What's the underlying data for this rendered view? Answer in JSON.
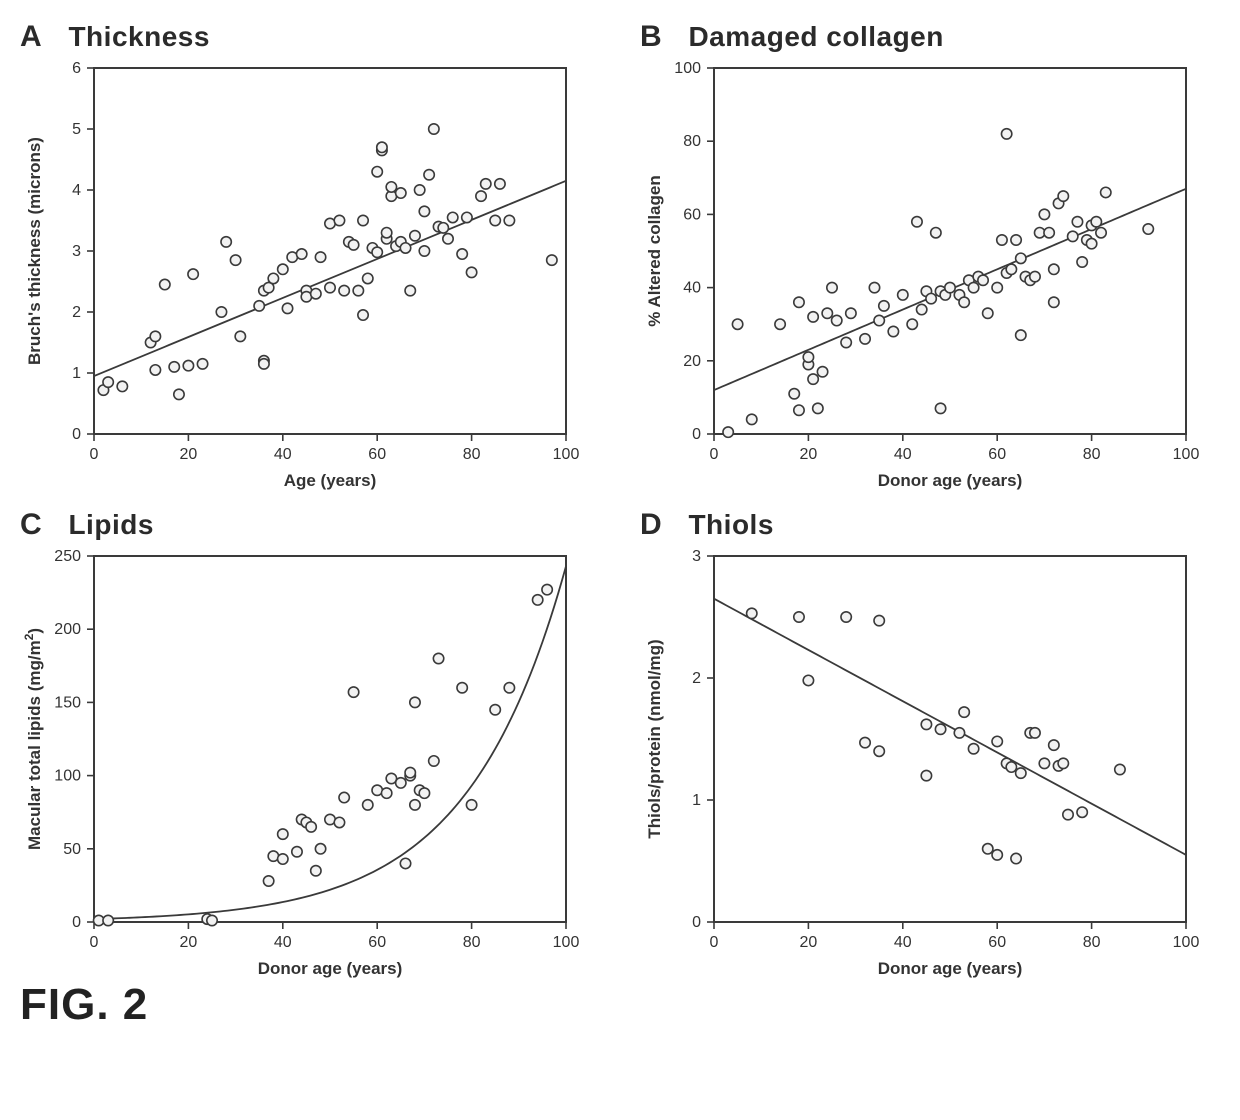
{
  "figure_label": "FIG. 2",
  "global": {
    "background_color": "#ffffff",
    "axis_color": "#3a3a3a",
    "tick_color": "#3a3a3a",
    "text_color": "#333333",
    "marker_stroke": "#3a3a3a",
    "marker_fill": "#f2f2f2",
    "line_color": "#3a3a3a",
    "marker_radius": 5.2,
    "marker_stroke_width": 1.6,
    "line_width": 1.8,
    "axis_width": 2,
    "tick_length": 7,
    "title_fontsize": 28,
    "label_fontsize": 17,
    "tick_fontsize": 16
  },
  "panels": {
    "A": {
      "letter": "A",
      "title": "Thickness",
      "type": "scatter",
      "xlabel": "Age (years)",
      "ylabel": "Bruch's thickness (microns)",
      "xlim": [
        0,
        100
      ],
      "ylim": [
        0,
        6
      ],
      "xticks": [
        0,
        20,
        40,
        60,
        80,
        100
      ],
      "yticks": [
        0,
        1,
        2,
        3,
        4,
        5,
        6
      ],
      "fit": {
        "kind": "linear",
        "m": 0.032,
        "b": 0.95
      },
      "points": [
        [
          2,
          0.72
        ],
        [
          3,
          0.85
        ],
        [
          6,
          0.78
        ],
        [
          12,
          1.5
        ],
        [
          13,
          1.6
        ],
        [
          13,
          1.05
        ],
        [
          15,
          2.45
        ],
        [
          17,
          1.1
        ],
        [
          18,
          0.65
        ],
        [
          20,
          1.12
        ],
        [
          21,
          2.62
        ],
        [
          23,
          1.15
        ],
        [
          27,
          2.0
        ],
        [
          28,
          3.15
        ],
        [
          30,
          2.85
        ],
        [
          31,
          1.6
        ],
        [
          35,
          2.1
        ],
        [
          36,
          1.2
        ],
        [
          36,
          1.15
        ],
        [
          36,
          2.35
        ],
        [
          37,
          2.4
        ],
        [
          38,
          2.55
        ],
        [
          40,
          2.7
        ],
        [
          41,
          2.06
        ],
        [
          42,
          2.9
        ],
        [
          44,
          2.95
        ],
        [
          45,
          2.35
        ],
        [
          45,
          2.25
        ],
        [
          47,
          2.3
        ],
        [
          48,
          2.9
        ],
        [
          50,
          3.45
        ],
        [
          50,
          2.4
        ],
        [
          52,
          3.5
        ],
        [
          53,
          2.35
        ],
        [
          54,
          3.15
        ],
        [
          55,
          3.1
        ],
        [
          56,
          2.35
        ],
        [
          57,
          1.95
        ],
        [
          57,
          3.5
        ],
        [
          58,
          2.55
        ],
        [
          59,
          3.05
        ],
        [
          60,
          2.98
        ],
        [
          60,
          4.3
        ],
        [
          61,
          4.65
        ],
        [
          61,
          4.7
        ],
        [
          62,
          3.2
        ],
        [
          62,
          3.3
        ],
        [
          63,
          3.9
        ],
        [
          63,
          4.05
        ],
        [
          64,
          3.08
        ],
        [
          65,
          3.15
        ],
        [
          65,
          3.95
        ],
        [
          66,
          3.05
        ],
        [
          67,
          2.35
        ],
        [
          68,
          3.25
        ],
        [
          69,
          4.0
        ],
        [
          70,
          3.0
        ],
        [
          70,
          3.65
        ],
        [
          71,
          4.25
        ],
        [
          72,
          5.0
        ],
        [
          73,
          3.4
        ],
        [
          74,
          3.38
        ],
        [
          75,
          3.2
        ],
        [
          76,
          3.55
        ],
        [
          78,
          2.95
        ],
        [
          79,
          3.55
        ],
        [
          80,
          2.65
        ],
        [
          82,
          3.9
        ],
        [
          83,
          4.1
        ],
        [
          85,
          3.5
        ],
        [
          86,
          4.1
        ],
        [
          88,
          3.5
        ],
        [
          97,
          2.85
        ]
      ]
    },
    "B": {
      "letter": "B",
      "title": "Damaged collagen",
      "type": "scatter",
      "xlabel": "Donor age (years)",
      "ylabel": "% Altered collagen",
      "xlim": [
        0,
        100
      ],
      "ylim": [
        0,
        100
      ],
      "xticks": [
        0,
        20,
        40,
        60,
        80,
        100
      ],
      "yticks": [
        0,
        20,
        40,
        60,
        80,
        100
      ],
      "fit": {
        "kind": "linear",
        "m": 0.55,
        "b": 12
      },
      "points": [
        [
          3,
          0.5
        ],
        [
          5,
          30
        ],
        [
          8,
          4
        ],
        [
          14,
          30
        ],
        [
          17,
          11
        ],
        [
          18,
          36
        ],
        [
          18,
          6.5
        ],
        [
          20,
          19
        ],
        [
          20,
          21
        ],
        [
          21,
          15
        ],
        [
          21,
          32
        ],
        [
          22,
          7
        ],
        [
          23,
          17
        ],
        [
          24,
          33
        ],
        [
          25,
          40
        ],
        [
          26,
          31
        ],
        [
          28,
          25
        ],
        [
          29,
          33
        ],
        [
          32,
          26
        ],
        [
          34,
          40
        ],
        [
          35,
          31
        ],
        [
          36,
          35
        ],
        [
          38,
          28
        ],
        [
          40,
          38
        ],
        [
          42,
          30
        ],
        [
          43,
          58
        ],
        [
          44,
          34
        ],
        [
          45,
          39
        ],
        [
          46,
          37
        ],
        [
          47,
          55
        ],
        [
          48,
          7
        ],
        [
          48,
          39
        ],
        [
          49,
          38
        ],
        [
          50,
          40
        ],
        [
          52,
          38
        ],
        [
          53,
          36
        ],
        [
          54,
          42
        ],
        [
          55,
          40
        ],
        [
          56,
          43
        ],
        [
          57,
          42
        ],
        [
          58,
          33
        ],
        [
          60,
          40
        ],
        [
          61,
          53
        ],
        [
          62,
          44
        ],
        [
          62,
          82
        ],
        [
          63,
          45
        ],
        [
          64,
          53
        ],
        [
          65,
          48
        ],
        [
          65,
          27
        ],
        [
          66,
          43
        ],
        [
          67,
          42
        ],
        [
          68,
          43
        ],
        [
          69,
          55
        ],
        [
          70,
          60
        ],
        [
          71,
          55
        ],
        [
          72,
          45
        ],
        [
          72,
          36
        ],
        [
          73,
          63
        ],
        [
          74,
          65
        ],
        [
          76,
          54
        ],
        [
          77,
          58
        ],
        [
          78,
          47
        ],
        [
          79,
          53
        ],
        [
          80,
          52
        ],
        [
          80,
          57
        ],
        [
          81,
          58
        ],
        [
          82,
          55
        ],
        [
          83,
          66
        ],
        [
          92,
          56
        ]
      ]
    },
    "C": {
      "letter": "C",
      "title": "Lipids",
      "type": "scatter",
      "xlabel": "Donor age (years)",
      "ylabel": "Macular total lipids (mg/m²)",
      "ylabel_has_sup": true,
      "xlim": [
        0,
        100
      ],
      "ylim": [
        0,
        250
      ],
      "xticks": [
        0,
        20,
        40,
        60,
        80,
        100
      ],
      "yticks": [
        0,
        50,
        100,
        150,
        200,
        250
      ],
      "fit": {
        "kind": "exponential",
        "a": 2.0,
        "k": 0.048
      },
      "points": [
        [
          1,
          1
        ],
        [
          3,
          1
        ],
        [
          24,
          2
        ],
        [
          25,
          1
        ],
        [
          37,
          28
        ],
        [
          38,
          45
        ],
        [
          40,
          60
        ],
        [
          40,
          43
        ],
        [
          43,
          48
        ],
        [
          44,
          70
        ],
        [
          45,
          68
        ],
        [
          46,
          65
        ],
        [
          47,
          35
        ],
        [
          48,
          50
        ],
        [
          50,
          70
        ],
        [
          52,
          68
        ],
        [
          53,
          85
        ],
        [
          55,
          157
        ],
        [
          58,
          80
        ],
        [
          60,
          90
        ],
        [
          62,
          88
        ],
        [
          63,
          98
        ],
        [
          65,
          95
        ],
        [
          66,
          40
        ],
        [
          67,
          100
        ],
        [
          67,
          102
        ],
        [
          68,
          150
        ],
        [
          68,
          80
        ],
        [
          69,
          90
        ],
        [
          70,
          88
        ],
        [
          72,
          110
        ],
        [
          73,
          180
        ],
        [
          78,
          160
        ],
        [
          80,
          80
        ],
        [
          85,
          145
        ],
        [
          88,
          160
        ],
        [
          94,
          220
        ],
        [
          96,
          227
        ]
      ]
    },
    "D": {
      "letter": "D",
      "title": "Thiols",
      "type": "scatter",
      "xlabel": "Donor age (years)",
      "ylabel": "Thiols/protein (nmol/mg)",
      "xlim": [
        0,
        100
      ],
      "ylim": [
        0,
        3
      ],
      "xticks": [
        0,
        20,
        40,
        60,
        80,
        100
      ],
      "yticks": [
        0,
        1,
        2,
        3
      ],
      "fit": {
        "kind": "linear",
        "m": -0.021,
        "b": 2.65
      },
      "points": [
        [
          8,
          2.53
        ],
        [
          18,
          2.5
        ],
        [
          20,
          1.98
        ],
        [
          28,
          2.5
        ],
        [
          32,
          1.47
        ],
        [
          35,
          1.4
        ],
        [
          35,
          2.47
        ],
        [
          45,
          1.2
        ],
        [
          45,
          1.62
        ],
        [
          48,
          1.58
        ],
        [
          52,
          1.55
        ],
        [
          53,
          1.72
        ],
        [
          55,
          1.42
        ],
        [
          58,
          0.6
        ],
        [
          60,
          1.48
        ],
        [
          60,
          0.55
        ],
        [
          62,
          1.3
        ],
        [
          63,
          1.27
        ],
        [
          64,
          0.52
        ],
        [
          65,
          1.22
        ],
        [
          67,
          1.55
        ],
        [
          68,
          1.55
        ],
        [
          70,
          1.3
        ],
        [
          72,
          1.45
        ],
        [
          73,
          1.28
        ],
        [
          74,
          1.3
        ],
        [
          75,
          0.88
        ],
        [
          78,
          0.9
        ],
        [
          86,
          1.25
        ]
      ]
    }
  }
}
